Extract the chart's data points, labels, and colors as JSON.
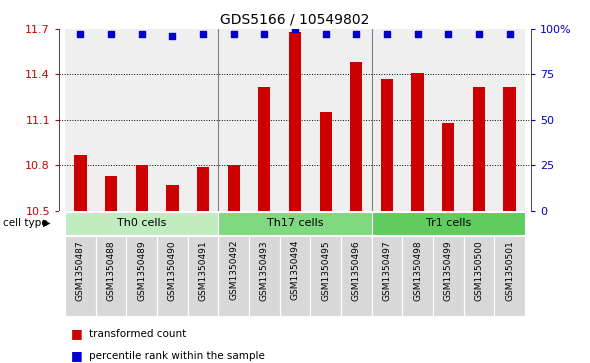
{
  "title": "GDS5166 / 10549802",
  "samples": [
    "GSM1350487",
    "GSM1350488",
    "GSM1350489",
    "GSM1350490",
    "GSM1350491",
    "GSM1350492",
    "GSM1350493",
    "GSM1350494",
    "GSM1350495",
    "GSM1350496",
    "GSM1350497",
    "GSM1350498",
    "GSM1350499",
    "GSM1350500",
    "GSM1350501"
  ],
  "values": [
    10.87,
    10.73,
    10.8,
    10.67,
    10.79,
    10.8,
    11.32,
    11.68,
    11.15,
    11.48,
    11.37,
    11.41,
    11.08,
    11.32,
    11.32
  ],
  "percentile_values": [
    97,
    97,
    97,
    96,
    97,
    97,
    97,
    100,
    97,
    97,
    97,
    97,
    97,
    97,
    97
  ],
  "ylim": [
    10.5,
    11.7
  ],
  "yticks": [
    10.5,
    10.8,
    11.1,
    11.4,
    11.7
  ],
  "bar_color": "#cc0000",
  "dot_color": "#0000cc",
  "sample_bg_color": "#d8d8d8",
  "cell_groups": [
    {
      "label": "Th0 cells",
      "start": 0,
      "end": 4,
      "color": "#c0ecc0"
    },
    {
      "label": "Th17 cells",
      "start": 5,
      "end": 9,
      "color": "#80d880"
    },
    {
      "label": "Tr1 cells",
      "start": 10,
      "end": 14,
      "color": "#60cc60"
    }
  ],
  "legend_items": [
    {
      "label": "transformed count",
      "color": "#cc0000"
    },
    {
      "label": "percentile rank within the sample",
      "color": "#0000cc"
    }
  ],
  "right_yticks": [
    0,
    25,
    50,
    75,
    100
  ],
  "right_ytick_labels": [
    "0",
    "25",
    "50",
    "75",
    "100%"
  ]
}
